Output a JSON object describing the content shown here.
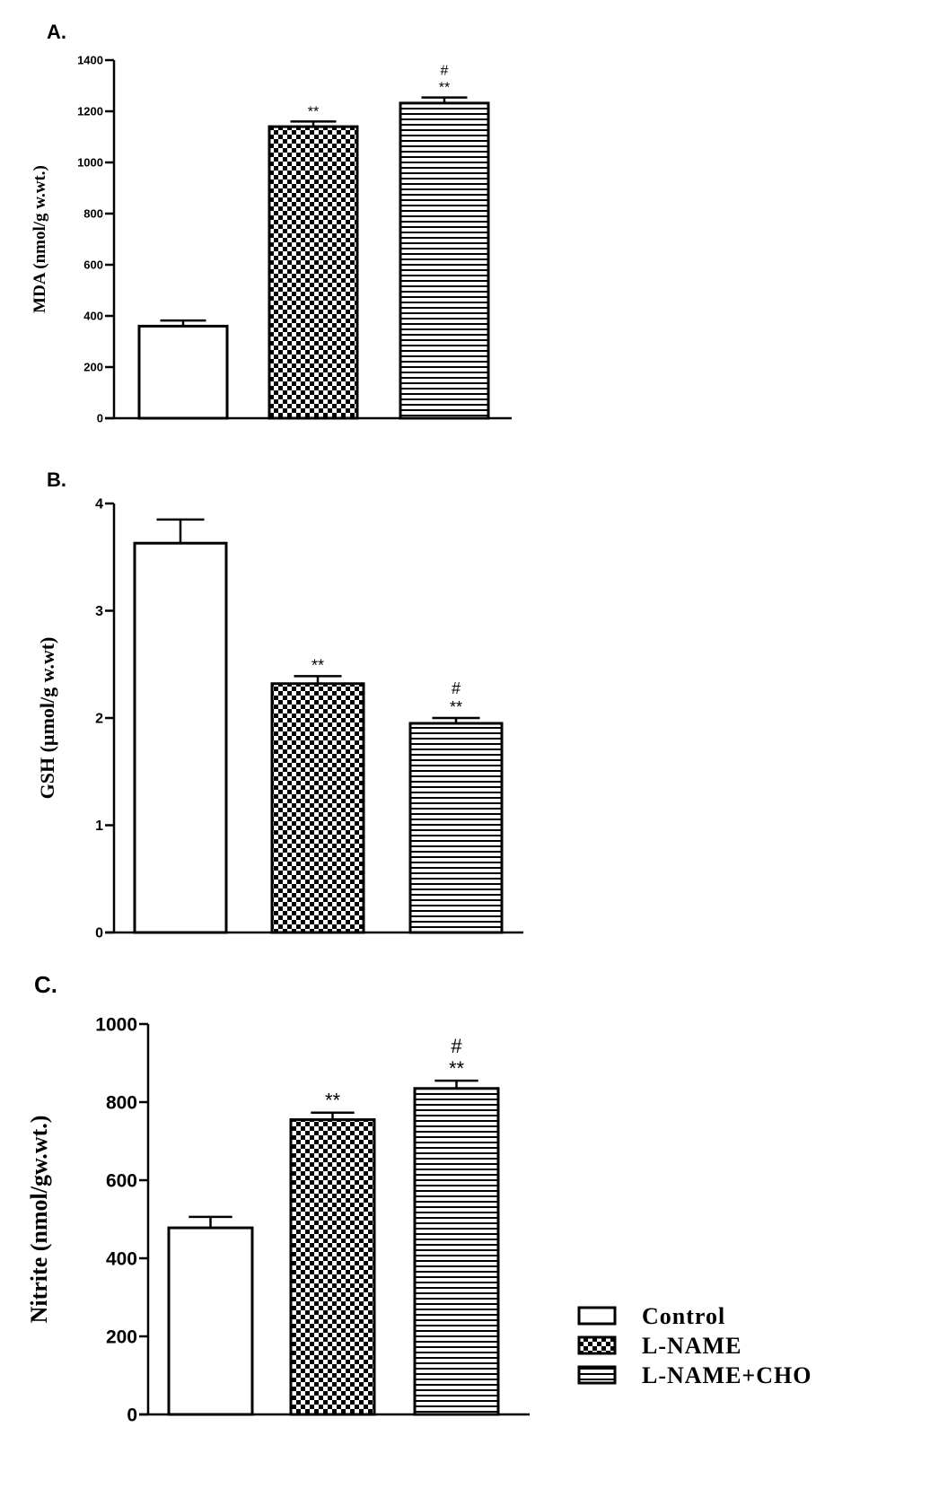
{
  "legend": {
    "items": [
      {
        "label": "Control",
        "pattern": "open"
      },
      {
        "label": "L-NAME",
        "pattern": "checker"
      },
      {
        "label": "L-NAME+CHO",
        "pattern": "horizontal-lines"
      }
    ]
  },
  "colors": {
    "ink": "#000000",
    "background": "#ffffff"
  },
  "chart_data": [
    {
      "type": "bar",
      "panel_label": "A.",
      "ylabel": "MDA (nmol/g w.wt.)",
      "ylim": [
        0,
        1400
      ],
      "yticks": [
        0,
        200,
        400,
        600,
        800,
        1000,
        1200,
        1400
      ],
      "categories": [
        "Control",
        "L-NAME",
        "L-NAME+CHO"
      ],
      "values": [
        360,
        1140,
        1232
      ],
      "errors": [
        22,
        20,
        22
      ],
      "annotations": [
        [],
        [
          "**"
        ],
        [
          "**",
          "#"
        ]
      ]
    },
    {
      "type": "bar",
      "panel_label": "B.",
      "ylabel": "GSH (µmol/g w.wt)",
      "ylim": [
        0,
        4
      ],
      "yticks": [
        0,
        1,
        2,
        3,
        4
      ],
      "categories": [
        "Control",
        "L-NAME",
        "L-NAME+CHO"
      ],
      "values": [
        3.63,
        2.32,
        1.95
      ],
      "errors": [
        0.22,
        0.07,
        0.05
      ],
      "annotations": [
        [],
        [
          "**"
        ],
        [
          "**",
          "#"
        ]
      ]
    },
    {
      "type": "bar",
      "panel_label": "C.",
      "ylabel": "Nitrite (nmol/gw.wt.)",
      "ylim": [
        0,
        1000
      ],
      "yticks": [
        0,
        200,
        400,
        600,
        800,
        1000
      ],
      "categories": [
        "Control",
        "L-NAME",
        "L-NAME+CHO"
      ],
      "values": [
        478,
        755,
        835
      ],
      "errors": [
        28,
        18,
        20
      ],
      "annotations": [
        [],
        [
          "**"
        ],
        [
          "**",
          "#"
        ]
      ]
    }
  ]
}
